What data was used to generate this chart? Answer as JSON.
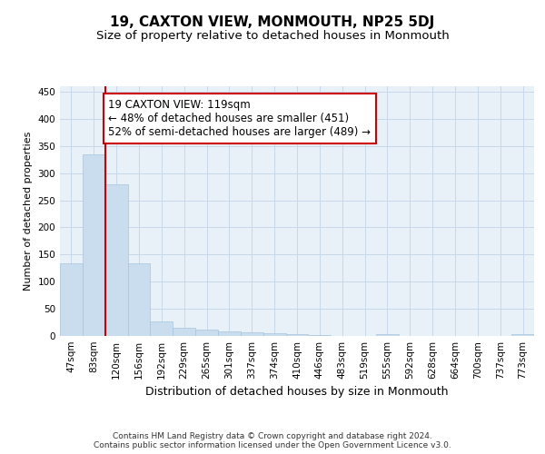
{
  "title": "19, CAXTON VIEW, MONMOUTH, NP25 5DJ",
  "subtitle": "Size of property relative to detached houses in Monmouth",
  "xlabel": "Distribution of detached houses by size in Monmouth",
  "ylabel": "Number of detached properties",
  "categories": [
    "47sqm",
    "83sqm",
    "120sqm",
    "156sqm",
    "192sqm",
    "229sqm",
    "265sqm",
    "301sqm",
    "337sqm",
    "374sqm",
    "410sqm",
    "446sqm",
    "483sqm",
    "519sqm",
    "555sqm",
    "592sqm",
    "628sqm",
    "664sqm",
    "700sqm",
    "737sqm",
    "773sqm"
  ],
  "values": [
    133,
    335,
    280,
    133,
    27,
    15,
    11,
    8,
    6,
    5,
    4,
    1,
    0,
    0,
    4,
    0,
    0,
    0,
    0,
    0,
    4
  ],
  "bar_color": "#c9ddef",
  "bar_edge_color": "#a8c4dc",
  "red_line_index": 2,
  "annotation_text": "19 CAXTON VIEW: 119sqm\n← 48% of detached houses are smaller (451)\n52% of semi-detached houses are larger (489) →",
  "annotation_box_color": "#ffffff",
  "annotation_box_edge": "#cc0000",
  "red_line_color": "#cc0000",
  "ylim": [
    0,
    460
  ],
  "yticks": [
    0,
    50,
    100,
    150,
    200,
    250,
    300,
    350,
    400,
    450
  ],
  "grid_color": "#c8d8e8",
  "bg_color": "#e8f0f8",
  "footer": "Contains HM Land Registry data © Crown copyright and database right 2024.\nContains public sector information licensed under the Open Government Licence v3.0.",
  "title_fontsize": 11,
  "subtitle_fontsize": 9.5,
  "xlabel_fontsize": 9,
  "ylabel_fontsize": 8,
  "tick_fontsize": 7.5,
  "annotation_fontsize": 8.5,
  "footer_fontsize": 6.5
}
